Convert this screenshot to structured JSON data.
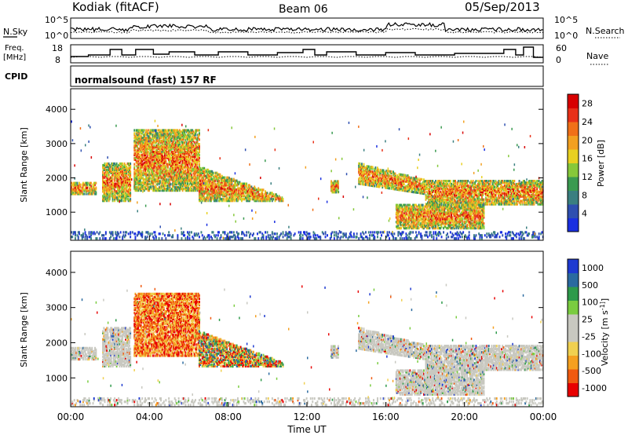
{
  "header": {
    "radar": "Kodiak (fitACF)",
    "beam": "Beam 06",
    "date": "05/Sep/2013"
  },
  "noise_panel": {
    "left_label": "N.Sky",
    "right_label": "N.Search",
    "y_ticks": [
      "10^5",
      "10^0"
    ]
  },
  "freq_panel": {
    "left_label_line1": "Freq.",
    "left_label_line2": "[MHz]",
    "left_ticks": [
      "18",
      "8"
    ],
    "right_ticks": [
      "60",
      "0"
    ],
    "right_label": "Nave"
  },
  "cpid_panel": {
    "label": "CPID",
    "text": "normalsound (fast) 157 RF"
  },
  "colors": {
    "power_scale": [
      "#1a2fe0",
      "#2e4fb0",
      "#3a7f80",
      "#3a9a50",
      "#86c83a",
      "#e8d020",
      "#f2a020",
      "#f07018",
      "#e83018",
      "#d80000"
    ],
    "velocity_scale": [
      "#e80000",
      "#f05a10",
      "#f5a020",
      "#f0d050",
      "#c8c8c0",
      "#c8c8c0",
      "#7acc40",
      "#2e9a4a",
      "#2a6aa0",
      "#1e3ad0"
    ]
  },
  "chart_data": [
    {
      "type": "heatmap",
      "title": "",
      "xlabel": "Time UT",
      "ylabel": "Slant Range [km]",
      "xlim": [
        "00:00",
        "24:00"
      ],
      "ylim": [
        180,
        4600
      ],
      "x_ticks": [
        "00:00",
        "04:00",
        "08:00",
        "12:00",
        "16:00",
        "20:00",
        "00:00"
      ],
      "y_ticks": [
        1000,
        2000,
        3000,
        4000
      ],
      "colorbar": {
        "label": "Power [dB]",
        "range": [
          0,
          30
        ],
        "ticks": [
          "4",
          "8",
          "12",
          "16",
          "20",
          "24",
          "28"
        ]
      },
      "echo_regions": [
        {
          "t_start_h": 0.0,
          "t_end_h": 1.3,
          "range_km": [
            1500,
            1850
          ]
        },
        {
          "t_start_h": 1.6,
          "t_end_h": 3.0,
          "range_km": [
            1300,
            2400
          ]
        },
        {
          "t_start_h": 3.2,
          "t_end_h": 6.5,
          "range_km": [
            1600,
            3400
          ]
        },
        {
          "t_start_h": 6.5,
          "t_end_h": 10.8,
          "range_km": [
            1300,
            2300
          ]
        },
        {
          "t_start_h": 13.2,
          "t_end_h": 13.6,
          "range_km": [
            1550,
            1900
          ]
        },
        {
          "t_start_h": 14.6,
          "t_end_h": 18.0,
          "range_km": [
            1500,
            2400
          ]
        },
        {
          "t_start_h": 18.0,
          "t_end_h": 24.0,
          "range_km": [
            1200,
            1900
          ]
        },
        {
          "t_start_h": 16.5,
          "t_end_h": 21.0,
          "range_km": [
            500,
            1200
          ]
        },
        {
          "t_start_h": 0.0,
          "t_end_h": 24.0,
          "range_km": [
            200,
            400
          ]
        }
      ]
    },
    {
      "type": "heatmap",
      "title": "",
      "xlabel": "Time UT",
      "ylabel": "Slant Range [km]",
      "xlim": [
        "00:00",
        "24:00"
      ],
      "ylim": [
        180,
        4600
      ],
      "x_ticks": [
        "00:00",
        "04:00",
        "08:00",
        "12:00",
        "16:00",
        "20:00",
        "00:00"
      ],
      "y_ticks": [
        1000,
        2000,
        3000,
        4000
      ],
      "colorbar": {
        "label": "Velocity [m s^-1]",
        "range": [
          -1000,
          1000
        ],
        "ticks": [
          "1000",
          "500",
          "100",
          "25",
          "-25",
          "-100",
          "-500",
          "-1000"
        ]
      },
      "echo_regions": [
        {
          "t_start_h": 0.0,
          "t_end_h": 1.3,
          "range_km": [
            1500,
            1850
          ]
        },
        {
          "t_start_h": 1.6,
          "t_end_h": 3.0,
          "range_km": [
            1300,
            2400
          ]
        },
        {
          "t_start_h": 3.2,
          "t_end_h": 6.5,
          "range_km": [
            1600,
            3400
          ]
        },
        {
          "t_start_h": 6.5,
          "t_end_h": 10.8,
          "range_km": [
            1300,
            2300
          ]
        },
        {
          "t_start_h": 13.2,
          "t_end_h": 13.6,
          "range_km": [
            1550,
            1900
          ]
        },
        {
          "t_start_h": 14.6,
          "t_end_h": 18.0,
          "range_km": [
            1500,
            2400
          ]
        },
        {
          "t_start_h": 18.0,
          "t_end_h": 24.0,
          "range_km": [
            1200,
            1900
          ]
        },
        {
          "t_start_h": 16.5,
          "t_end_h": 21.0,
          "range_km": [
            500,
            1200
          ]
        },
        {
          "t_start_h": 0.0,
          "t_end_h": 24.0,
          "range_km": [
            200,
            400
          ]
        }
      ]
    }
  ]
}
